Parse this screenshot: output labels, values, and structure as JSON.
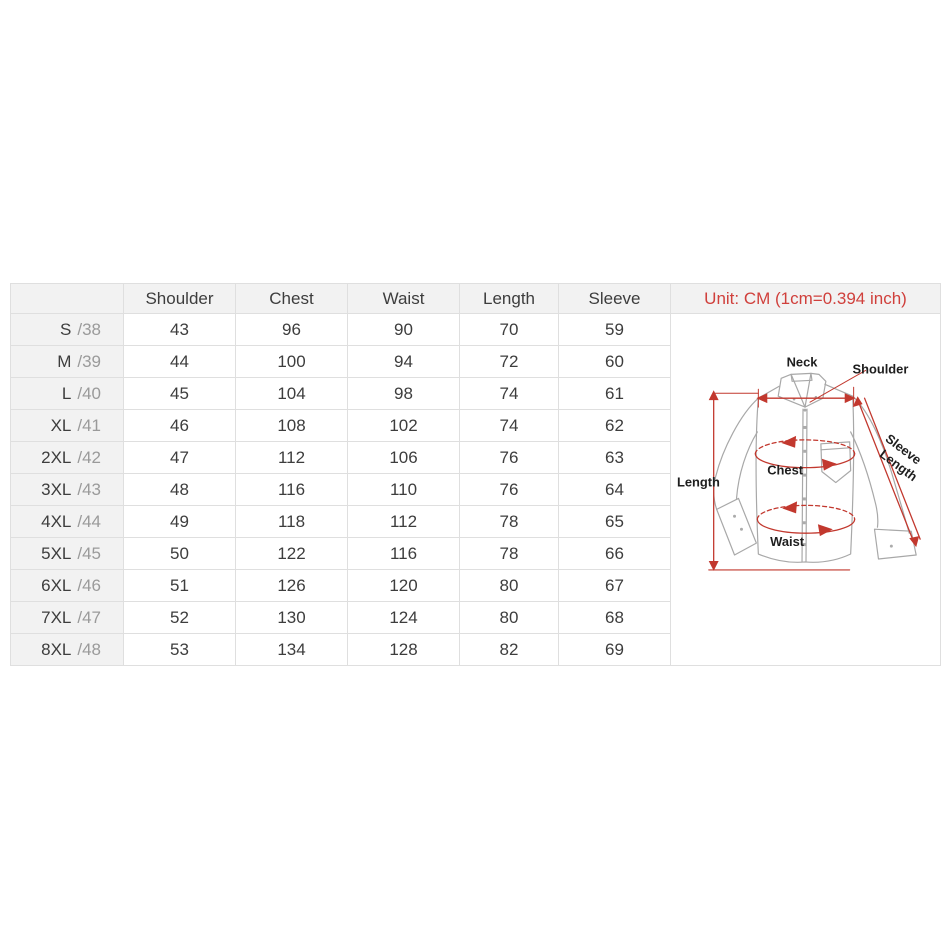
{
  "colors": {
    "unit_text": "#d0403c",
    "diagram_accent": "#c2382e",
    "shirt_outline": "#a8a8a8",
    "header_background": "#f2f2f2",
    "grid_border": "#dfdfdf"
  },
  "chart_data": {
    "type": "table",
    "title": "Unit: CM (1cm=0.394 inch)",
    "columns": [
      "",
      "Shoulder",
      "Chest",
      "Waist",
      "Length",
      "Sleeve"
    ],
    "rows": [
      {
        "size": "S",
        "size_tag": "/38",
        "values": [
          43,
          96,
          90,
          70,
          59
        ]
      },
      {
        "size": "M",
        "size_tag": "/39",
        "values": [
          44,
          100,
          94,
          72,
          60
        ]
      },
      {
        "size": "L",
        "size_tag": "/40",
        "values": [
          45,
          104,
          98,
          74,
          61
        ]
      },
      {
        "size": "XL",
        "size_tag": "/41",
        "values": [
          46,
          108,
          102,
          74,
          62
        ]
      },
      {
        "size": "2XL",
        "size_tag": "/42",
        "values": [
          47,
          112,
          106,
          76,
          63
        ]
      },
      {
        "size": "3XL",
        "size_tag": "/43",
        "values": [
          48,
          116,
          110,
          76,
          64
        ]
      },
      {
        "size": "4XL",
        "size_tag": "/44",
        "values": [
          49,
          118,
          112,
          78,
          65
        ]
      },
      {
        "size": "5XL",
        "size_tag": "/45",
        "values": [
          50,
          122,
          116,
          78,
          66
        ]
      },
      {
        "size": "6XL",
        "size_tag": "/46",
        "values": [
          51,
          126,
          120,
          80,
          67
        ]
      },
      {
        "size": "7XL",
        "size_tag": "/47",
        "values": [
          52,
          130,
          124,
          80,
          68
        ]
      },
      {
        "size": "8XL",
        "size_tag": "/48",
        "values": [
          53,
          134,
          128,
          82,
          69
        ]
      }
    ]
  },
  "diagram": {
    "labels": {
      "neck": "Neck",
      "shoulder": "Shoulder",
      "sleeve_line1": "Sleeve",
      "sleeve_line2": "Length",
      "length": "Length",
      "chest": "Chest",
      "waist": "Waist"
    }
  }
}
